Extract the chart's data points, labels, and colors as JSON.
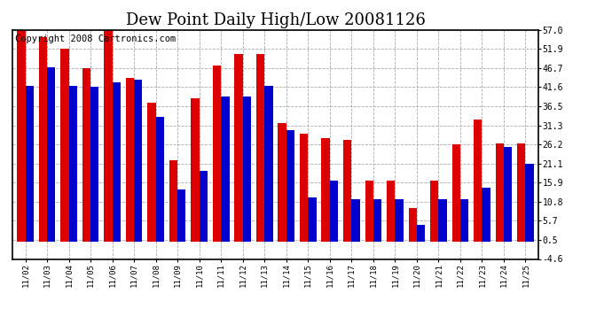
{
  "title": "Dew Point Daily High/Low 20081126",
  "copyright": "Copyright 2008 Cartronics.com",
  "dates": [
    "11/02",
    "11/03",
    "11/04",
    "11/05",
    "11/06",
    "11/07",
    "11/08",
    "11/09",
    "11/10",
    "11/11",
    "11/12",
    "11/13",
    "11/14",
    "11/15",
    "11/16",
    "11/17",
    "11/18",
    "11/19",
    "11/20",
    "11/21",
    "11/22",
    "11/23",
    "11/24",
    "11/25"
  ],
  "highs": [
    57.0,
    55.0,
    51.9,
    46.7,
    57.0,
    44.0,
    37.5,
    22.0,
    38.5,
    47.5,
    50.5,
    50.5,
    32.0,
    29.0,
    28.0,
    27.5,
    16.5,
    16.5,
    9.0,
    16.5,
    26.2,
    33.0,
    26.5,
    26.5
  ],
  "lows": [
    42.0,
    47.0,
    42.0,
    41.6,
    43.0,
    43.5,
    33.5,
    14.0,
    19.0,
    39.0,
    39.0,
    42.0,
    30.0,
    12.0,
    16.5,
    11.5,
    11.5,
    11.5,
    4.5,
    11.5,
    11.5,
    14.5,
    25.5,
    21.0
  ],
  "high_color": "#dd0000",
  "low_color": "#0000cc",
  "background_color": "#ffffff",
  "grid_color": "#aaaaaa",
  "ylim_min": -4.6,
  "ylim_max": 57.0,
  "yticks": [
    -4.6,
    0.5,
    5.7,
    10.8,
    15.9,
    21.1,
    26.2,
    31.3,
    36.5,
    41.6,
    46.7,
    51.9,
    57.0
  ],
  "title_fontsize": 13,
  "copyright_fontsize": 7.5,
  "figwidth": 6.9,
  "figheight": 3.75,
  "dpi": 100
}
